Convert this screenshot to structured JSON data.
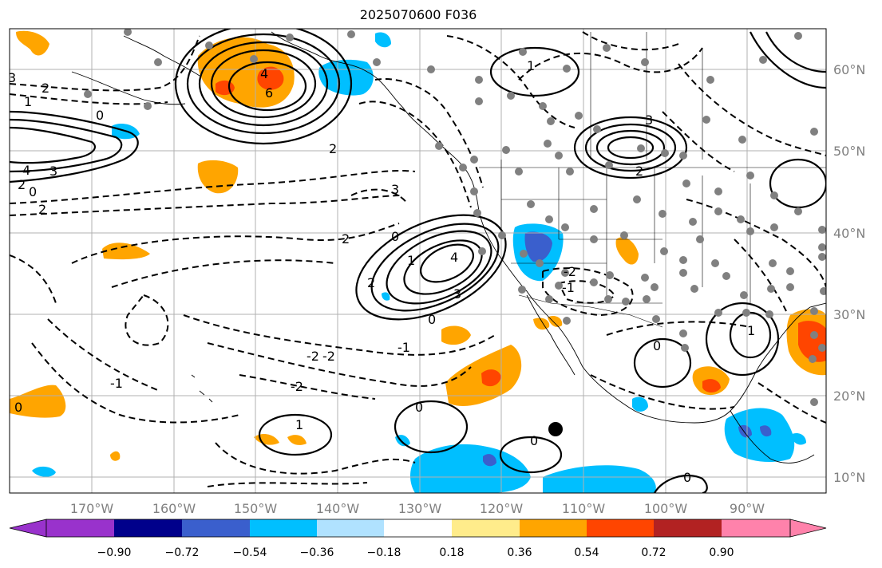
{
  "title": "2025070600 F036",
  "lon_labels": [
    "170°W",
    "160°W",
    "150°W",
    "140°W",
    "130°W",
    "120°W",
    "110°W",
    "100°W",
    "90°W"
  ],
  "lat_labels": [
    "60°N",
    "50°N",
    "40°N",
    "30°N",
    "20°N",
    "10°N"
  ],
  "colorbar": {
    "ticks": [
      "−0.90",
      "−0.72",
      "−0.54",
      "−0.36",
      "−0.18",
      "0.18",
      "0.36",
      "0.54",
      "0.72",
      "0.90"
    ],
    "colors": [
      "#9932cc",
      "#00008b",
      "#3a5fcd",
      "#00bfff",
      "#b0e2ff",
      "#ffffff",
      "#ffec8b",
      "#ffa500",
      "#ff4500",
      "#b22222",
      "#ff82ab"
    ]
  },
  "contour_labels": [
    "3",
    "2",
    "1",
    "0",
    "4",
    "3",
    "2",
    "0",
    "6",
    "4",
    "2",
    "2",
    "3",
    "0",
    "2",
    "1",
    "2",
    "3",
    "4",
    "3",
    "2",
    "1",
    "0",
    "-2",
    "-1",
    "-2",
    "-1",
    "0",
    "-1",
    "-2",
    "0",
    "1",
    "-2",
    "0",
    "0",
    "1",
    "0"
  ],
  "shading_colors": {
    "light_orange": "#ffa500",
    "red_orange": "#ff4500",
    "deep_sky_blue": "#00bfff",
    "royal_blue": "#3a5fcd"
  }
}
